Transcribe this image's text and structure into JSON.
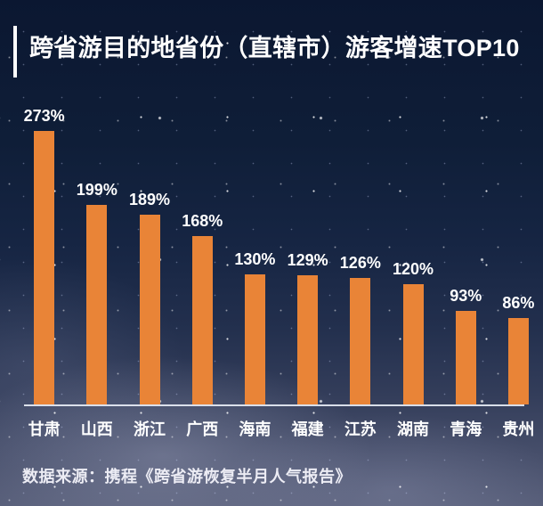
{
  "poster": {
    "title": "跨省游目的地省份（直辖市）游客增速TOP10",
    "source_note": "数据来源：携程《跨省游恢复半月人气报告》"
  },
  "chart_data": {
    "type": "bar",
    "title": "跨省游目的地省份（直辖市）游客增速TOP10",
    "categories": [
      "甘肃",
      "山西",
      "浙江",
      "广西",
      "海南",
      "福建",
      "江苏",
      "湖南",
      "青海",
      "贵州"
    ],
    "values": [
      273,
      199,
      189,
      168,
      130,
      129,
      126,
      120,
      93,
      86
    ],
    "value_labels": [
      "273%",
      "199%",
      "189%",
      "168%",
      "130%",
      "129%",
      "126%",
      "120%",
      "93%",
      "86%"
    ],
    "unit": "%",
    "ylim": [
      0,
      280
    ],
    "grid": false,
    "legend": false,
    "orientation": "vertical",
    "bar_color": "#E98437",
    "value_label_color": "#FFFFFF",
    "axis_line_color": "#EBF0F8"
  },
  "colors": {
    "background_top": "#0B1731",
    "background_bottom": "#575E79",
    "bar": "#E98437",
    "title_text": "#FFFFFF",
    "title_accent_bar": "#FFFFFF",
    "source_text": "#ECECF4"
  }
}
